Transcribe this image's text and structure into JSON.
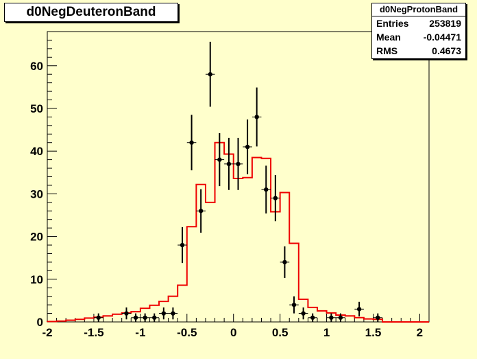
{
  "title": "d0NegDeuteronBand",
  "stats": {
    "name": "d0NegProtonBand",
    "rows": [
      {
        "label": "Entries",
        "value": "253819"
      },
      {
        "label": "Mean",
        "value": "-0.04471"
      },
      {
        "label": "RMS",
        "value": "0.4673"
      }
    ]
  },
  "colors": {
    "background": "#ffffcc",
    "histogram": "#ee0000",
    "points": "#000000"
  },
  "chart_data": {
    "type": "line",
    "xlim": [
      -2,
      2.1
    ],
    "ylim": [
      0,
      68
    ],
    "x_ticks": [
      "-2",
      "-1.5",
      "-1",
      "-0.5",
      "0",
      "0.5",
      "1",
      "1.5",
      "2"
    ],
    "y_ticks": [
      "0",
      "10",
      "20",
      "30",
      "40",
      "50",
      "60"
    ],
    "histogram": {
      "bin_width": 0.1,
      "edges": [
        -2.0,
        1.6
      ],
      "values": [
        0.1,
        0.2,
        0.4,
        0.6,
        0.9,
        1.1,
        1.4,
        1.8,
        2.1,
        2.4,
        3.2,
        3.9,
        4.8,
        6.0,
        8.6,
        22.3,
        32.2,
        28.0,
        42.0,
        39.3,
        33.6,
        33.8,
        38.5,
        38.3,
        25.8,
        30.3,
        18.4,
        5.3,
        3.4,
        2.6,
        2.1,
        1.6,
        1.4,
        1.0,
        0.7,
        0.6
      ]
    },
    "points": [
      {
        "x": -1.45,
        "y": 1,
        "err": 1
      },
      {
        "x": -1.15,
        "y": 2,
        "err": 1.4
      },
      {
        "x": -1.05,
        "y": 1,
        "err": 1
      },
      {
        "x": -0.95,
        "y": 1,
        "err": 1
      },
      {
        "x": -0.85,
        "y": 1,
        "err": 1
      },
      {
        "x": -0.75,
        "y": 2,
        "err": 1.4
      },
      {
        "x": -0.65,
        "y": 2,
        "err": 1.4
      },
      {
        "x": -0.55,
        "y": 18,
        "err": 4.2
      },
      {
        "x": -0.45,
        "y": 42,
        "err": 6.5
      },
      {
        "x": -0.35,
        "y": 26,
        "err": 5.1
      },
      {
        "x": -0.25,
        "y": 58,
        "err": 7.6
      },
      {
        "x": -0.15,
        "y": 38,
        "err": 6.2
      },
      {
        "x": -0.05,
        "y": 37,
        "err": 6.1
      },
      {
        "x": 0.05,
        "y": 37,
        "err": 6.1
      },
      {
        "x": 0.15,
        "y": 41,
        "err": 6.4
      },
      {
        "x": 0.25,
        "y": 48,
        "err": 6.9
      },
      {
        "x": 0.35,
        "y": 31,
        "err": 5.6
      },
      {
        "x": 0.45,
        "y": 29,
        "err": 5.4
      },
      {
        "x": 0.55,
        "y": 14,
        "err": 3.7
      },
      {
        "x": 0.65,
        "y": 4,
        "err": 2
      },
      {
        "x": 0.75,
        "y": 2,
        "err": 1.4
      },
      {
        "x": 0.85,
        "y": 1,
        "err": 1
      },
      {
        "x": 1.05,
        "y": 1,
        "err": 1
      },
      {
        "x": 1.15,
        "y": 1,
        "err": 1
      },
      {
        "x": 1.35,
        "y": 3,
        "err": 1.7
      },
      {
        "x": 1.55,
        "y": 1,
        "err": 1
      }
    ]
  }
}
